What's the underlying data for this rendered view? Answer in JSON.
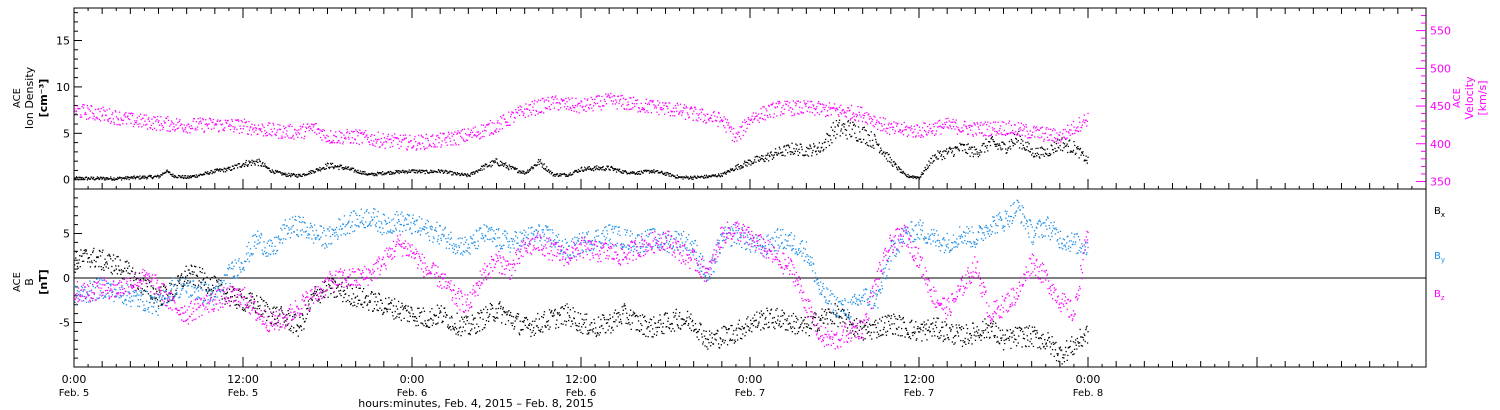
{
  "figure": {
    "xlabel": "hours:minutes, Feb.  4, 2015 – Feb.  8, 2015",
    "time_range_hours": [
      0,
      96
    ],
    "tick_labels": [
      {
        "h": 0,
        "time": "0:00",
        "date": "Feb. 5"
      },
      {
        "h": 12,
        "time": "12:00",
        "date": "Feb. 5"
      },
      {
        "h": 24,
        "time": "0:00",
        "date": "Feb. 6"
      },
      {
        "h": 36,
        "time": "12:00",
        "date": "Feb. 6"
      },
      {
        "h": 48,
        "time": "0:00",
        "date": "Feb. 7"
      },
      {
        "h": 60,
        "time": "12:00",
        "date": "Feb. 7"
      },
      {
        "h": 72,
        "time": "0:00",
        "date": "Feb. 8"
      }
    ]
  },
  "colors": {
    "density": "#000000",
    "velocity": "#ff00ff",
    "bx": "#000000",
    "by": "#1f8fe6",
    "bz": "#ff00ff",
    "axis": "#000000"
  },
  "chart_data": [
    {
      "type": "scatter",
      "panel": "top",
      "ylabel_left": [
        "ACE",
        "Ion Density",
        "[cm⁻³]"
      ],
      "ylabel_right": [
        "ACE",
        "Velocity",
        "[km/s]"
      ],
      "ylim_left": [
        -1,
        18.5
      ],
      "ylim_right": [
        340,
        580
      ],
      "yticks_left": [
        "0",
        "5",
        "10",
        "15"
      ],
      "yticks_right": [
        "350",
        "400",
        "450",
        "500",
        "550"
      ],
      "series": [
        {
          "key": "density",
          "axis": "left",
          "x": [
            0,
            3,
            6,
            6.5,
            7,
            8,
            9,
            10,
            11,
            12,
            13,
            14,
            15,
            16,
            17,
            18,
            19,
            20,
            21,
            22,
            23,
            24,
            25,
            26,
            27,
            28,
            29,
            30,
            31,
            32,
            33,
            34,
            35,
            36,
            37,
            38,
            39,
            40,
            41,
            42,
            43,
            44,
            45,
            46,
            47,
            48,
            49,
            50,
            51,
            52,
            53,
            54,
            55,
            56,
            57,
            58,
            59,
            60,
            61,
            62,
            63,
            64,
            65,
            66,
            67,
            68,
            69,
            70,
            71,
            72
          ],
          "values": [
            0.2,
            0.2,
            0.4,
            1.0,
            0.5,
            0.3,
            0.6,
            1.0,
            1.2,
            1.8,
            2.0,
            1.0,
            0.6,
            0.5,
            1.0,
            1.6,
            1.4,
            1.0,
            0.6,
            0.8,
            0.9,
            1.0,
            0.9,
            1.0,
            0.7,
            0.5,
            1.4,
            2.0,
            1.3,
            0.8,
            2.0,
            0.6,
            0.6,
            1.2,
            1.3,
            1.3,
            0.9,
            0.8,
            1.0,
            0.7,
            0.3,
            0.3,
            0.4,
            0.6,
            1.4,
            2.0,
            2.4,
            3.0,
            3.4,
            3.2,
            3.5,
            5.5,
            5.5,
            5.0,
            4.0,
            2.0,
            0.5,
            0.3,
            2.5,
            3.0,
            3.5,
            3.0,
            4.0,
            3.5,
            4.5,
            3.0,
            3.0,
            4.0,
            3.5,
            2.0
          ]
        },
        {
          "key": "velocity",
          "axis": "right",
          "x": [
            0,
            2,
            4,
            6,
            8,
            10,
            12,
            14,
            16,
            17,
            18,
            20,
            22,
            24,
            26,
            28,
            30,
            32,
            34,
            36,
            38,
            40,
            42,
            44,
            46,
            47,
            48,
            50,
            52,
            54,
            56,
            58,
            60,
            62,
            64,
            66,
            68,
            70,
            72
          ],
          "values": [
            445,
            440,
            432,
            428,
            425,
            426,
            424,
            418,
            416,
            422,
            410,
            410,
            405,
            402,
            405,
            412,
            425,
            445,
            455,
            450,
            458,
            452,
            448,
            440,
            432,
            408,
            435,
            448,
            448,
            445,
            440,
            420,
            418,
            425,
            420,
            422,
            416,
            410,
            435
          ]
        }
      ]
    },
    {
      "type": "scatter",
      "panel": "bottom",
      "ylabel_left": [
        "ACE",
        "B",
        "[nT]"
      ],
      "ylim": [
        -10,
        10
      ],
      "yticks": [
        "5",
        "0",
        "-5"
      ],
      "legend": [
        {
          "key": "bx",
          "label": "Bx"
        },
        {
          "key": "by",
          "label": "By"
        },
        {
          "key": "bz",
          "label": "Bz"
        }
      ],
      "series": [
        {
          "key": "bx",
          "x": [
            0,
            1,
            2,
            3,
            4,
            5,
            6,
            7,
            8,
            9,
            10,
            11,
            12,
            13,
            14,
            15,
            16,
            17,
            18,
            19,
            20,
            21,
            22,
            23,
            24,
            25,
            26,
            27,
            28,
            29,
            30,
            31,
            32,
            33,
            34,
            35,
            36,
            37,
            38,
            39,
            40,
            41,
            42,
            43,
            44,
            45,
            46,
            47,
            48,
            49,
            50,
            51,
            52,
            53,
            54,
            55,
            56,
            57,
            58,
            59,
            60,
            61,
            62,
            63,
            64,
            65,
            66,
            67,
            68,
            69,
            70,
            71,
            72
          ],
          "values": [
            1.8,
            2.5,
            2.0,
            1.5,
            0.5,
            -1.0,
            -2.0,
            -1.5,
            0.5,
            0.0,
            -1.0,
            -2.0,
            -2.5,
            -3.0,
            -4.0,
            -4.5,
            -5.5,
            -2.0,
            -1.0,
            -1.5,
            -2.0,
            -2.5,
            -3.0,
            -3.5,
            -4.0,
            -4.5,
            -4.0,
            -5.0,
            -5.5,
            -4.5,
            -3.5,
            -4.5,
            -5.5,
            -5.0,
            -4.5,
            -4.0,
            -5.0,
            -5.5,
            -5.0,
            -4.0,
            -5.0,
            -5.5,
            -5.0,
            -4.5,
            -5.0,
            -7.0,
            -6.5,
            -6.0,
            -5.0,
            -4.5,
            -4.5,
            -5.0,
            -5.5,
            -4.5,
            -4.0,
            -5.0,
            -6.0,
            -5.5,
            -5.0,
            -5.5,
            -6.0,
            -5.5,
            -6.0,
            -6.5,
            -6.0,
            -5.5,
            -7.0,
            -6.5,
            -6.5,
            -7.0,
            -8.5,
            -7.5,
            -6.0
          ]
        },
        {
          "key": "by",
          "x": [
            0,
            1,
            2,
            3,
            4,
            5,
            6,
            7,
            8,
            9,
            10,
            11,
            12,
            13,
            14,
            15,
            16,
            17,
            18,
            19,
            20,
            21,
            22,
            23,
            24,
            25,
            26,
            27,
            28,
            29,
            30,
            31,
            32,
            33,
            34,
            35,
            36,
            37,
            38,
            39,
            40,
            41,
            42,
            43,
            44,
            45,
            46,
            47,
            48,
            49,
            50,
            51,
            52,
            53,
            54,
            55,
            56,
            57,
            58,
            59,
            60,
            61,
            62,
            63,
            64,
            65,
            66,
            67,
            68,
            69,
            70,
            71,
            72
          ],
          "values": [
            -2.0,
            -1.5,
            -1.0,
            -1.5,
            -2.0,
            -2.5,
            -3.0,
            -1.0,
            -1.0,
            -1.5,
            -2.0,
            0.5,
            2.0,
            4.5,
            3.0,
            5.5,
            6.0,
            5.0,
            4.5,
            6.0,
            6.5,
            7.0,
            6.0,
            6.5,
            6.0,
            5.5,
            5.0,
            4.0,
            3.5,
            5.0,
            4.5,
            4.0,
            4.5,
            5.0,
            4.5,
            3.0,
            4.0,
            4.5,
            5.0,
            4.5,
            4.0,
            4.5,
            4.0,
            4.5,
            3.5,
            0.0,
            4.5,
            5.0,
            4.0,
            3.5,
            4.5,
            4.0,
            3.0,
            -1.5,
            -3.0,
            -3.5,
            -2.0,
            -2.5,
            3.0,
            5.0,
            5.5,
            4.5,
            4.0,
            5.0,
            4.5,
            6.0,
            6.5,
            8.0,
            5.0,
            6.0,
            4.5,
            4.0,
            3.5
          ]
        },
        {
          "key": "bz",
          "x": [
            0,
            1,
            2,
            3,
            4,
            5,
            6,
            7,
            8,
            9,
            10,
            11,
            12,
            13,
            14,
            15,
            16,
            17,
            18,
            19,
            20,
            21,
            22,
            23,
            24,
            25,
            26,
            27,
            28,
            29,
            30,
            31,
            32,
            33,
            34,
            35,
            36,
            37,
            38,
            39,
            40,
            41,
            42,
            43,
            44,
            45,
            46,
            47,
            48,
            49,
            50,
            51,
            52,
            53,
            54,
            55,
            56,
            57,
            58,
            59,
            60,
            61,
            62,
            63,
            64,
            65,
            66,
            67,
            68,
            69,
            70,
            71,
            72
          ],
          "values": [
            -1.5,
            -1.5,
            -1.0,
            -1.2,
            -0.5,
            0.0,
            -1.0,
            -3.0,
            -4.0,
            -3.0,
            -2.5,
            -2.0,
            -2.0,
            -4.0,
            -5.0,
            -4.5,
            -3.0,
            -2.0,
            -0.5,
            0.0,
            0.0,
            0.5,
            2.0,
            4.0,
            3.0,
            1.0,
            0.0,
            -2.0,
            -3.0,
            0.5,
            2.0,
            1.0,
            3.5,
            4.0,
            3.0,
            2.5,
            3.5,
            3.0,
            3.0,
            2.5,
            3.5,
            4.0,
            4.5,
            3.0,
            2.0,
            0.5,
            5.0,
            5.5,
            4.5,
            3.5,
            2.0,
            1.0,
            -3.0,
            -6.5,
            -7.0,
            -6.0,
            -5.5,
            0.0,
            4.0,
            5.0,
            2.0,
            -2.0,
            -3.5,
            -1.0,
            1.5,
            -4.0,
            -3.0,
            -1.5,
            2.0,
            0.0,
            -2.5,
            -4.0,
            6.0
          ]
        }
      ]
    }
  ]
}
